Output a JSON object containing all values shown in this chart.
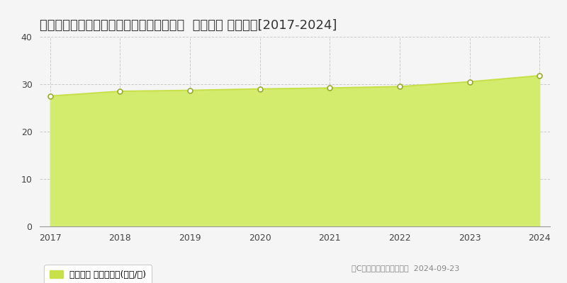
{
  "title": "千葉県成田市はなのき台１丁目２２番１３  公示地価 地価推移[2017-2024]",
  "years": [
    2017,
    2018,
    2019,
    2020,
    2021,
    2022,
    2023,
    2024
  ],
  "values": [
    27.5,
    28.5,
    28.7,
    29.0,
    29.2,
    29.5,
    30.5,
    31.8
  ],
  "ylim": [
    0,
    40
  ],
  "yticks": [
    0,
    10,
    20,
    30,
    40
  ],
  "line_color": "#c8e04a",
  "fill_color": "#d4ec6e",
  "fill_alpha": 1.0,
  "marker_color": "white",
  "marker_edge_color": "#9aaa30",
  "bg_color": "#f5f5f5",
  "plot_bg_color": "#f5f5f5",
  "grid_color": "#cccccc",
  "title_fontsize": 13,
  "legend_label": "公示地価 平均坪単価(万円/坪)",
  "copyright_text": "（C）土地価格ドットコム  2024-09-23",
  "legend_box_color": "#c8e04a"
}
